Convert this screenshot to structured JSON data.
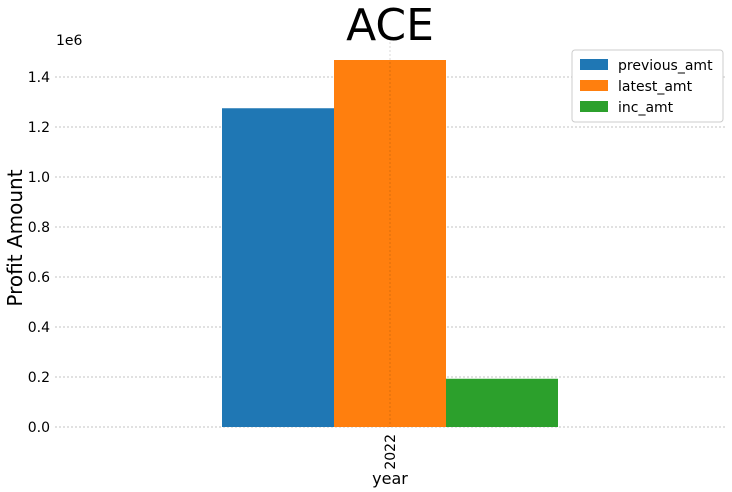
{
  "chart_data": {
    "type": "bar",
    "title": "ACE",
    "xlabel": "year",
    "ylabel": "Profit Amount",
    "y_offset_label": "1e6",
    "categories": [
      "2022"
    ],
    "series": [
      {
        "name": "previous_amt",
        "values": [
          1275000
        ],
        "color": "#1f77b4"
      },
      {
        "name": "latest_amt",
        "values": [
          1468000
        ],
        "color": "#ff7f0e"
      },
      {
        "name": "inc_amt",
        "values": [
          193000
        ],
        "color": "#2ca02c"
      }
    ],
    "ylim": [
      0,
      1540000
    ],
    "yticks": [
      0,
      200000,
      400000,
      600000,
      800000,
      1000000,
      1200000,
      1400000
    ],
    "ytick_labels": [
      "0.0",
      "0.2",
      "0.4",
      "0.6",
      "0.8",
      "1.0",
      "1.2",
      "1.4"
    ],
    "grid": true,
    "legend_position": "top-right"
  }
}
